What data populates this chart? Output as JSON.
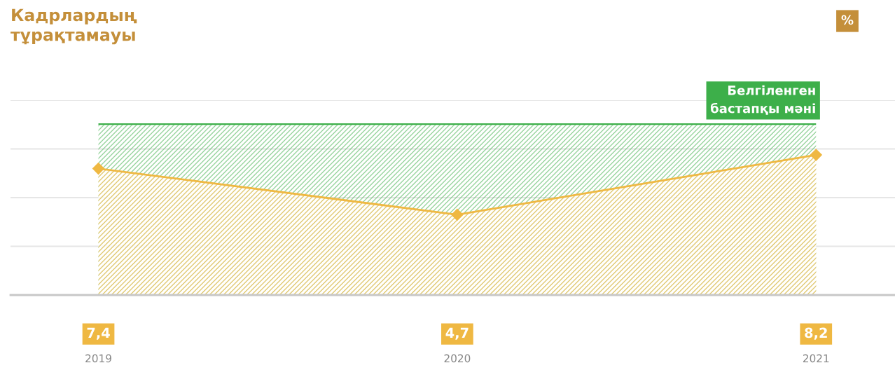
{
  "chart_data": {
    "type": "area",
    "title": "Кадрлардың\nтұрақтамауы",
    "annotations": [
      "%"
    ],
    "bands": [
      {
        "axis": "y",
        "from": 0,
        "to": 10.0,
        "color": "#3daf4a"
      }
    ],
    "categories": [
      "2019",
      "2020",
      "2021"
    ],
    "series": [
      {
        "color": "#efb842",
        "values": [
          7.4,
          4.7,
          8.2
        ],
        "value_labels": [
          "7,4",
          "4,7",
          "8,2"
        ]
      }
    ],
    "ylim": [
      0,
      11.4
    ],
    "yticks": [
      {
        "value": 0,
        "label": null
      },
      {
        "value": 2.85,
        "label": null
      },
      {
        "value": 5.7,
        "label": null
      },
      {
        "value": 8.55,
        "label": null
      },
      {
        "value": 11.4,
        "label": null
      }
    ],
    "tick_labels": "x",
    "grid": "y",
    "marker": "diamond",
    "line_style": "solid",
    "ref_lines": [
      {
        "axis": "y",
        "value": 10.0,
        "label": "Белгіленген\nбастапқы мəні",
        "color": "#3daf4a"
      }
    ]
  }
}
